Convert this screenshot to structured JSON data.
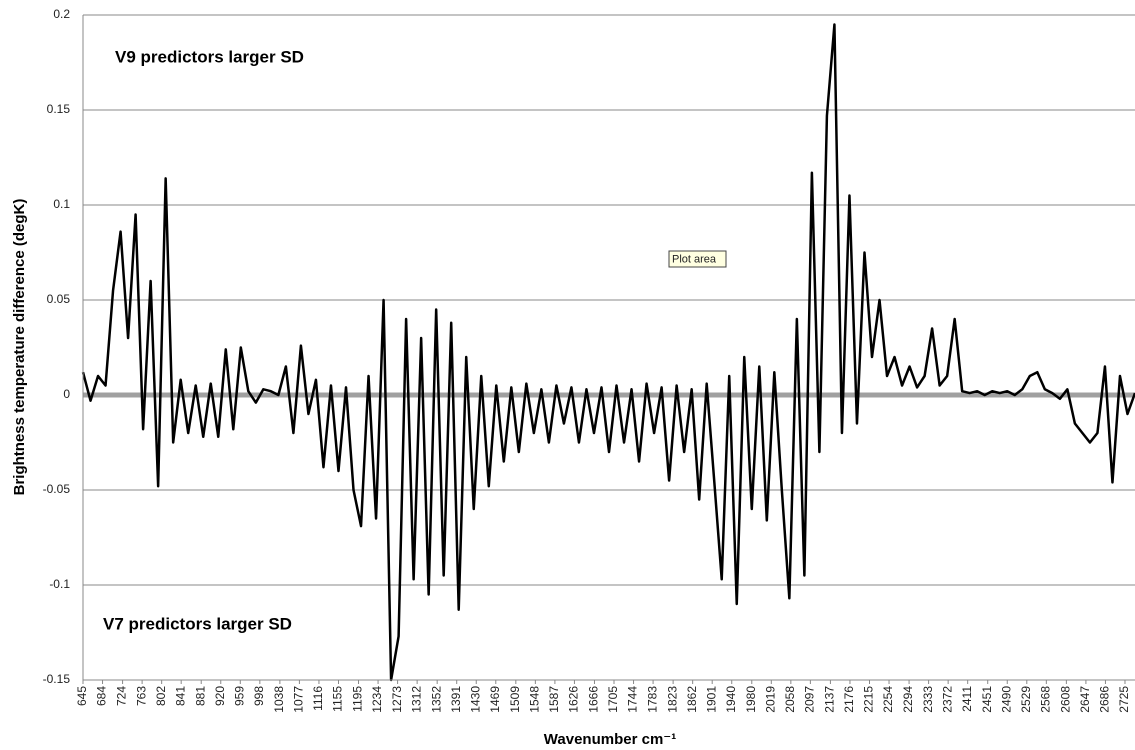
{
  "chart_data": {
    "type": "line",
    "y_label": "Brightness temperature difference (degK)",
    "x_label": "Wavenumber cm⁻¹",
    "annotations": [
      "V9  predictors larger SD",
      "V7 predictors larger SD",
      "Plot area"
    ],
    "xlim": [
      645,
      2745
    ],
    "xticks": [
      645,
      684,
      724,
      763,
      802,
      841,
      881,
      920,
      959,
      998,
      1038,
      1077,
      1116,
      1155,
      1195,
      1234,
      1273,
      1312,
      1352,
      1391,
      1430,
      1469,
      1509,
      1548,
      1587,
      1626,
      1666,
      1705,
      1744,
      1783,
      1823,
      1862,
      1901,
      1940,
      1980,
      2019,
      2058,
      2097,
      2137,
      2176,
      2215,
      2254,
      2294,
      2333,
      2372,
      2411,
      2451,
      2490,
      2529,
      2568,
      2608,
      2647,
      2686,
      2725
    ],
    "ylim": [
      -0.15,
      0.2
    ],
    "yticks": [
      -0.15,
      -0.1,
      -0.05,
      0,
      0.05,
      0.1,
      0.15,
      0.2
    ],
    "grid": true,
    "zero_line_color": "#a0a0a0",
    "x": [
      645,
      660,
      675,
      690,
      705,
      720,
      735,
      750,
      765,
      780,
      795,
      810,
      825,
      840,
      855,
      870,
      885,
      900,
      915,
      930,
      945,
      960,
      975,
      990,
      1005,
      1020,
      1035,
      1050,
      1065,
      1080,
      1095,
      1110,
      1125,
      1140,
      1155,
      1170,
      1185,
      1200,
      1215,
      1230,
      1245,
      1260,
      1275,
      1290,
      1305,
      1320,
      1335,
      1350,
      1365,
      1380,
      1395,
      1410,
      1425,
      1440,
      1455,
      1470,
      1485,
      1500,
      1515,
      1530,
      1545,
      1560,
      1575,
      1590,
      1605,
      1620,
      1635,
      1650,
      1665,
      1680,
      1695,
      1710,
      1725,
      1740,
      1755,
      1770,
      1785,
      1800,
      1815,
      1830,
      1845,
      1860,
      1875,
      1890,
      1905,
      1920,
      1935,
      1950,
      1965,
      1980,
      1995,
      2010,
      2025,
      2040,
      2055,
      2070,
      2085,
      2100,
      2115,
      2130,
      2145,
      2160,
      2175,
      2190,
      2205,
      2220,
      2235,
      2250,
      2265,
      2280,
      2295,
      2310,
      2325,
      2340,
      2355,
      2370,
      2385,
      2400,
      2415,
      2430,
      2445,
      2460,
      2475,
      2490,
      2505,
      2520,
      2535,
      2550,
      2565,
      2580,
      2595,
      2610,
      2625,
      2640,
      2655,
      2670,
      2685,
      2700,
      2715,
      2730,
      2745
    ],
    "series": [
      {
        "color": "#000000",
        "values": [
          0.012,
          -0.003,
          0.01,
          0.005,
          0.055,
          0.086,
          0.03,
          0.095,
          -0.018,
          0.06,
          -0.048,
          0.114,
          -0.025,
          0.008,
          -0.02,
          0.005,
          -0.022,
          0.006,
          -0.022,
          0.024,
          -0.018,
          0.025,
          0.002,
          -0.004,
          0.003,
          0.002,
          0.0,
          0.015,
          -0.02,
          0.026,
          -0.01,
          0.008,
          -0.038,
          0.005,
          -0.04,
          0.004,
          -0.05,
          -0.069,
          0.01,
          -0.065,
          0.05,
          -0.15,
          -0.127,
          0.04,
          -0.097,
          0.03,
          -0.105,
          0.045,
          -0.095,
          0.038,
          -0.113,
          0.02,
          -0.06,
          0.01,
          -0.048,
          0.005,
          -0.035,
          0.004,
          -0.03,
          0.006,
          -0.02,
          0.003,
          -0.025,
          0.005,
          -0.015,
          0.004,
          -0.025,
          0.003,
          -0.02,
          0.004,
          -0.03,
          0.005,
          -0.025,
          0.003,
          -0.035,
          0.006,
          -0.02,
          0.004,
          -0.045,
          0.005,
          -0.03,
          0.003,
          -0.055,
          0.006,
          -0.045,
          -0.097,
          0.01,
          -0.11,
          0.02,
          -0.06,
          0.015,
          -0.066,
          0.012,
          -0.05,
          -0.107,
          0.04,
          -0.095,
          0.117,
          -0.03,
          0.147,
          0.195,
          -0.02,
          0.105,
          -0.015,
          0.075,
          0.02,
          0.05,
          0.01,
          0.02,
          0.005,
          0.015,
          0.004,
          0.01,
          0.035,
          0.005,
          0.01,
          0.04,
          0.002,
          0.001,
          0.002,
          0.0,
          0.002,
          0.001,
          0.002,
          0.0,
          0.003,
          0.01,
          0.012,
          0.003,
          0.001,
          -0.002,
          0.003,
          -0.015,
          -0.02,
          -0.025,
          -0.02,
          0.015,
          -0.046,
          0.01,
          -0.01,
          0.001
        ]
      }
    ]
  }
}
